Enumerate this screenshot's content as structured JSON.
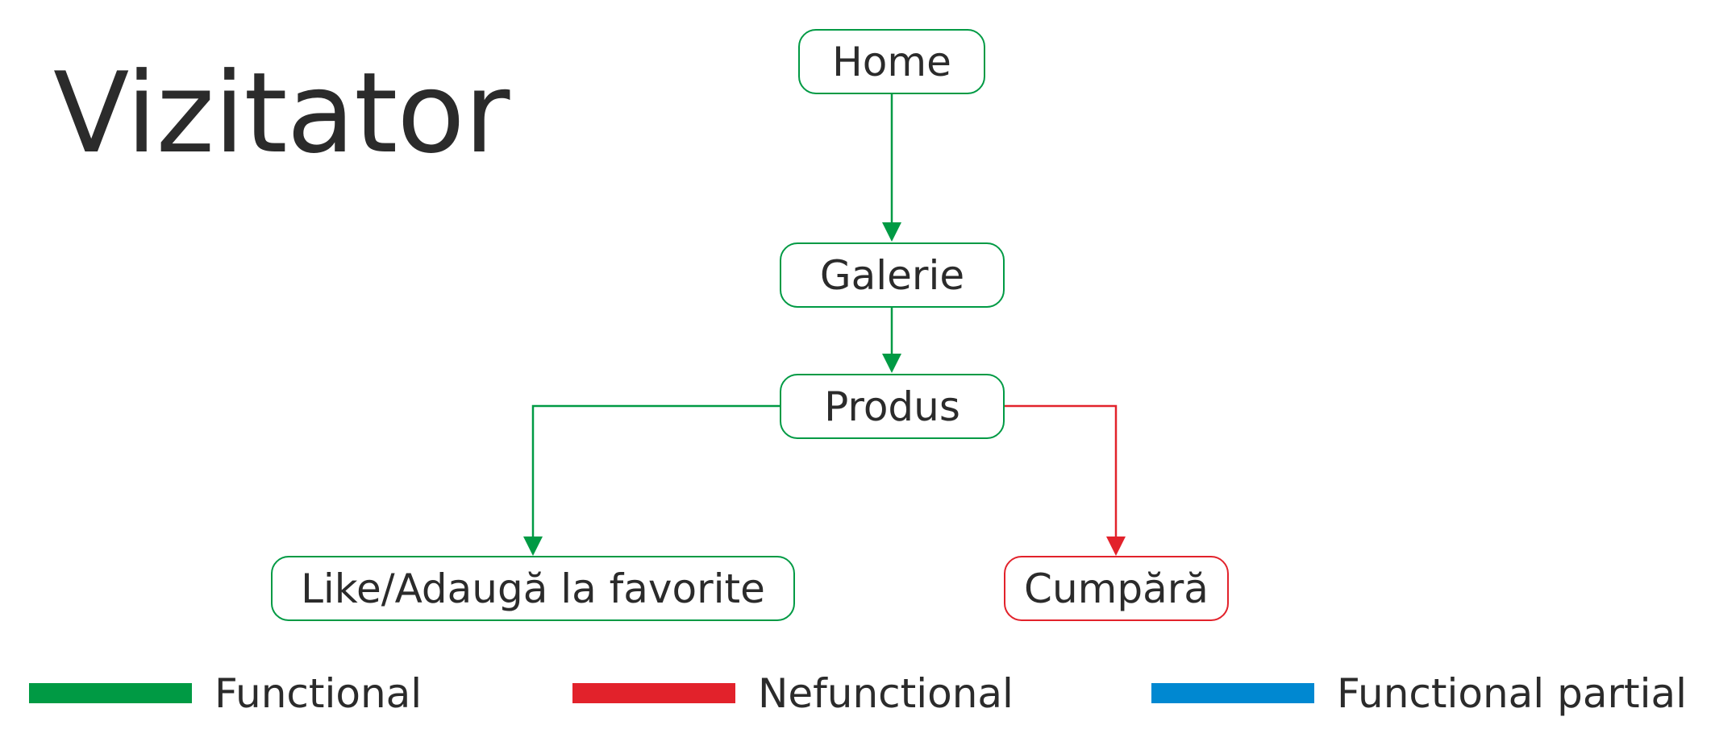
{
  "title": "Vizitator",
  "colors": {
    "functional": "#009a44",
    "nonfunctional": "#e2222b",
    "partial": "#0088d1",
    "text": "#2b2b2b"
  },
  "nodes": {
    "home": {
      "label": "Home",
      "status": "functional"
    },
    "galerie": {
      "label": "Galerie",
      "status": "functional"
    },
    "produs": {
      "label": "Produs",
      "status": "functional"
    },
    "like": {
      "label": "Like/Adaugă la favorite",
      "status": "functional"
    },
    "cumpara": {
      "label": "Cumpără",
      "status": "nonfunctional"
    }
  },
  "edges": [
    {
      "from": "Home",
      "to": "Galerie",
      "status": "functional"
    },
    {
      "from": "Galerie",
      "to": "Produs",
      "status": "functional"
    },
    {
      "from": "Produs",
      "to": "Like/Adaugă la favorite",
      "status": "functional"
    },
    {
      "from": "Produs",
      "to": "Cumpără",
      "status": "nonfunctional"
    }
  ],
  "legend": [
    {
      "label": "Functional",
      "status": "functional"
    },
    {
      "label": "Nefunctional",
      "status": "nonfunctional"
    },
    {
      "label": "Functional partial",
      "status": "partial"
    }
  ]
}
